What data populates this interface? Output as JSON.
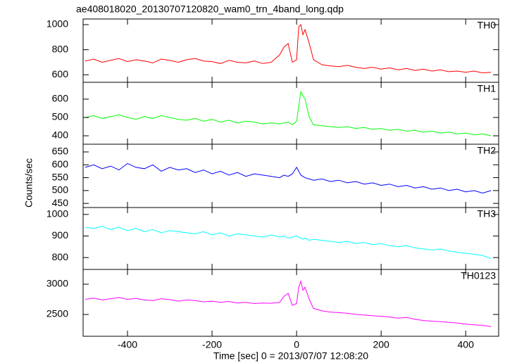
{
  "chart_data": [
    {
      "type": "line",
      "title": "ae408018020_20130707120820_wam0_trn_4band_long.qdp",
      "x": [
        -500,
        -480,
        -460,
        -440,
        -420,
        -400,
        -380,
        -360,
        -340,
        -320,
        -300,
        -280,
        -260,
        -240,
        -220,
        -200,
        -180,
        -160,
        -140,
        -120,
        -100,
        -80,
        -60,
        -40,
        -30,
        -20,
        -10,
        0,
        5,
        10,
        15,
        20,
        30,
        40,
        60,
        80,
        100,
        120,
        140,
        160,
        180,
        200,
        220,
        240,
        260,
        280,
        300,
        320,
        340,
        360,
        380,
        400,
        420,
        440,
        460
      ],
      "series": [
        {
          "name": "TH0",
          "color": "#ff0000",
          "values": [
            710,
            725,
            700,
            715,
            730,
            705,
            720,
            710,
            695,
            725,
            715,
            700,
            720,
            730,
            710,
            705,
            690,
            715,
            700,
            695,
            710,
            690,
            700,
            760,
            820,
            850,
            700,
            720,
            980,
            1000,
            920,
            960,
            850,
            720,
            680,
            670,
            665,
            675,
            660,
            650,
            660,
            645,
            655,
            640,
            650,
            635,
            645,
            630,
            640,
            625,
            630,
            620,
            630,
            615,
            620
          ]
        }
      ],
      "xlim": [
        -505,
        478
      ],
      "xticks": [
        -400,
        -200,
        0,
        200,
        400
      ],
      "ylim": [
        540,
        1045
      ],
      "yticks": [
        600,
        800,
        1000
      ]
    },
    {
      "type": "line",
      "x": [
        -500,
        -480,
        -460,
        -440,
        -420,
        -400,
        -380,
        -360,
        -340,
        -320,
        -300,
        -280,
        -260,
        -240,
        -220,
        -200,
        -180,
        -160,
        -140,
        -120,
        -100,
        -80,
        -60,
        -40,
        -30,
        -20,
        -10,
        0,
        5,
        10,
        15,
        20,
        30,
        40,
        60,
        80,
        100,
        120,
        140,
        160,
        180,
        200,
        220,
        240,
        260,
        280,
        300,
        320,
        340,
        360,
        380,
        400,
        420,
        440,
        460
      ],
      "series": [
        {
          "name": "TH1",
          "color": "#00ff00",
          "values": [
            500,
            510,
            495,
            505,
            515,
            500,
            490,
            505,
            495,
            510,
            500,
            490,
            485,
            495,
            480,
            490,
            475,
            485,
            470,
            480,
            475,
            465,
            470,
            465,
            470,
            475,
            460,
            480,
            560,
            640,
            620,
            600,
            500,
            460,
            455,
            450,
            445,
            450,
            440,
            445,
            435,
            440,
            430,
            435,
            425,
            430,
            420,
            425,
            415,
            420,
            410,
            415,
            405,
            410,
            400
          ]
        }
      ],
      "xlim": [
        -505,
        478
      ],
      "xticks": [
        -400,
        -200,
        0,
        200,
        400
      ],
      "ylim": [
        354,
        692
      ],
      "yticks": [
        400,
        500,
        600
      ]
    },
    {
      "type": "line",
      "y_label": "Counts/sec",
      "x": [
        -500,
        -480,
        -460,
        -440,
        -420,
        -400,
        -380,
        -360,
        -340,
        -320,
        -300,
        -280,
        -260,
        -240,
        -220,
        -200,
        -180,
        -160,
        -140,
        -120,
        -100,
        -80,
        -60,
        -40,
        -30,
        -20,
        -10,
        0,
        5,
        10,
        15,
        20,
        30,
        40,
        60,
        80,
        100,
        120,
        140,
        160,
        180,
        200,
        220,
        240,
        260,
        280,
        300,
        320,
        340,
        360,
        380,
        400,
        420,
        440,
        460
      ],
      "series": [
        {
          "name": "TH2",
          "color": "#0000ff",
          "values": [
            590,
            600,
            585,
            595,
            580,
            605,
            590,
            585,
            600,
            575,
            590,
            580,
            585,
            570,
            580,
            565,
            575,
            560,
            570,
            555,
            565,
            560,
            555,
            550,
            560,
            555,
            565,
            590,
            575,
            560,
            555,
            550,
            545,
            540,
            545,
            535,
            540,
            530,
            535,
            525,
            530,
            520,
            525,
            515,
            520,
            510,
            515,
            505,
            510,
            500,
            505,
            495,
            500,
            490,
            500
          ]
        }
      ],
      "xlim": [
        -505,
        478
      ],
      "xticks": [
        -400,
        -200,
        0,
        200,
        400
      ],
      "ylim": [
        434,
        680
      ],
      "yticks": [
        450,
        500,
        550,
        600,
        650
      ]
    },
    {
      "type": "line",
      "x": [
        -500,
        -480,
        -460,
        -440,
        -420,
        -400,
        -380,
        -360,
        -340,
        -320,
        -300,
        -280,
        -260,
        -240,
        -220,
        -200,
        -180,
        -160,
        -140,
        -120,
        -100,
        -80,
        -60,
        -40,
        -30,
        -20,
        -10,
        0,
        5,
        10,
        15,
        20,
        30,
        40,
        60,
        80,
        100,
        120,
        140,
        160,
        180,
        200,
        220,
        240,
        260,
        280,
        300,
        320,
        340,
        360,
        380,
        400,
        420,
        440,
        460
      ],
      "series": [
        {
          "name": "TH3",
          "color": "#00ffff",
          "values": [
            940,
            935,
            945,
            930,
            940,
            925,
            935,
            920,
            930,
            915,
            925,
            920,
            915,
            910,
            920,
            905,
            915,
            900,
            910,
            905,
            900,
            895,
            905,
            895,
            900,
            890,
            895,
            900,
            895,
            890,
            885,
            890,
            880,
            885,
            880,
            875,
            870,
            875,
            865,
            870,
            860,
            865,
            855,
            850,
            855,
            845,
            840,
            835,
            840,
            830,
            825,
            820,
            815,
            810,
            795
          ]
        }
      ],
      "xlim": [
        -505,
        478
      ],
      "xticks": [
        -400,
        -200,
        0,
        200,
        400
      ],
      "ylim": [
        745,
        1032
      ],
      "yticks": [
        800,
        900,
        1000
      ]
    },
    {
      "type": "line",
      "x_label": "Time [sec] 0 = 2013/07/07 12:08:20",
      "x": [
        -500,
        -480,
        -460,
        -440,
        -420,
        -400,
        -380,
        -360,
        -340,
        -320,
        -300,
        -280,
        -260,
        -240,
        -220,
        -200,
        -180,
        -160,
        -140,
        -120,
        -100,
        -80,
        -60,
        -40,
        -30,
        -20,
        -10,
        0,
        5,
        10,
        15,
        20,
        30,
        40,
        60,
        80,
        100,
        120,
        140,
        160,
        180,
        200,
        220,
        240,
        260,
        280,
        300,
        320,
        340,
        360,
        380,
        400,
        420,
        440,
        460
      ],
      "series": [
        {
          "name": "TH0123",
          "color": "#ff00ff",
          "values": [
            2750,
            2770,
            2740,
            2760,
            2780,
            2750,
            2765,
            2740,
            2730,
            2760,
            2745,
            2720,
            2740,
            2730,
            2710,
            2720,
            2700,
            2715,
            2690,
            2700,
            2680,
            2690,
            2685,
            2700,
            2800,
            2850,
            2650,
            2680,
            2950,
            3050,
            2900,
            2950,
            2750,
            2600,
            2560,
            2540,
            2530,
            2520,
            2500,
            2490,
            2480,
            2470,
            2460,
            2440,
            2450,
            2420,
            2400,
            2390,
            2380,
            2370,
            2360,
            2340,
            2330,
            2320,
            2300
          ]
        }
      ],
      "xlim": [
        -505,
        478
      ],
      "xticks": [
        -400,
        -200,
        0,
        200,
        400
      ],
      "ylim": [
        2140,
        3244
      ],
      "yticks": [
        2500,
        3000
      ]
    }
  ]
}
